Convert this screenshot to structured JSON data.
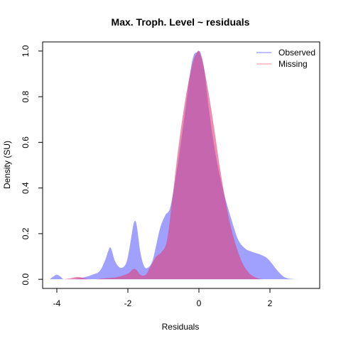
{
  "chart_data": {
    "type": "area",
    "title": "Max. Troph. Level ~ residuals",
    "xlabel": "Residuals",
    "ylabel": "Density (SU)",
    "xlim": [
      -4.4,
      3.4
    ],
    "ylim": [
      -0.04,
      1.04
    ],
    "x_ticks": [
      -4,
      -2,
      0,
      2
    ],
    "x_tick_labels": [
      "-4",
      "-2",
      "0",
      "2"
    ],
    "y_ticks": [
      0.0,
      0.2,
      0.4,
      0.6,
      0.8,
      1.0
    ],
    "y_tick_labels": [
      "0.0",
      "0.2",
      "0.4",
      "0.6",
      "0.8",
      "1.0"
    ],
    "grid": false,
    "legend_position": "top-right",
    "series": [
      {
        "name": "Observed",
        "color": "#7b7bff",
        "fill_color": "#8080ff",
        "fill_opacity": 0.75,
        "x": [
          -4.2,
          -4.1,
          -4.0,
          -3.9,
          -3.8,
          -3.6,
          -3.2,
          -3.0,
          -2.8,
          -2.65,
          -2.55,
          -2.5,
          -2.45,
          -2.35,
          -2.2,
          -2.05,
          -1.95,
          -1.85,
          -1.8,
          -1.75,
          -1.65,
          -1.55,
          -1.45,
          -1.3,
          -1.1,
          -0.95,
          -0.8,
          -0.6,
          -0.4,
          -0.25,
          -0.15,
          -0.05,
          0.0,
          0.05,
          0.15,
          0.3,
          0.5,
          0.7,
          0.9,
          1.1,
          1.3,
          1.5,
          1.7,
          1.9,
          2.05,
          2.2,
          2.4,
          2.6,
          2.8
        ],
        "y": [
          0.0,
          0.012,
          0.02,
          0.012,
          0.0,
          0.0,
          0.01,
          0.02,
          0.035,
          0.08,
          0.125,
          0.14,
          0.125,
          0.075,
          0.05,
          0.07,
          0.14,
          0.235,
          0.255,
          0.235,
          0.12,
          0.06,
          0.05,
          0.085,
          0.22,
          0.28,
          0.32,
          0.5,
          0.72,
          0.9,
          0.98,
          0.995,
          1.0,
          0.99,
          0.92,
          0.72,
          0.52,
          0.38,
          0.27,
          0.175,
          0.135,
          0.12,
          0.11,
          0.095,
          0.07,
          0.04,
          0.01,
          0.002,
          0.0
        ]
      },
      {
        "name": "Missing",
        "color": "#ff8a9a",
        "fill_color": "#e0407a",
        "fill_opacity": 0.6,
        "x": [
          -3.8,
          -3.6,
          -3.45,
          -3.3,
          -3.1,
          -2.9,
          -2.6,
          -2.3,
          -2.0,
          -1.85,
          -1.75,
          -1.65,
          -1.5,
          -1.35,
          -1.2,
          -1.05,
          -0.9,
          -0.75,
          -0.6,
          -0.45,
          -0.3,
          -0.15,
          -0.05,
          0.0,
          0.05,
          0.15,
          0.3,
          0.45,
          0.6,
          0.8,
          1.0,
          1.2,
          1.4,
          1.6,
          1.8
        ],
        "y": [
          0.0,
          0.005,
          0.01,
          0.008,
          0.0,
          0.0,
          0.005,
          0.01,
          0.025,
          0.045,
          0.04,
          0.02,
          0.02,
          0.06,
          0.1,
          0.12,
          0.17,
          0.35,
          0.55,
          0.72,
          0.86,
          0.96,
          0.995,
          1.0,
          0.98,
          0.92,
          0.79,
          0.64,
          0.48,
          0.3,
          0.17,
          0.08,
          0.03,
          0.008,
          0.0
        ]
      }
    ]
  }
}
